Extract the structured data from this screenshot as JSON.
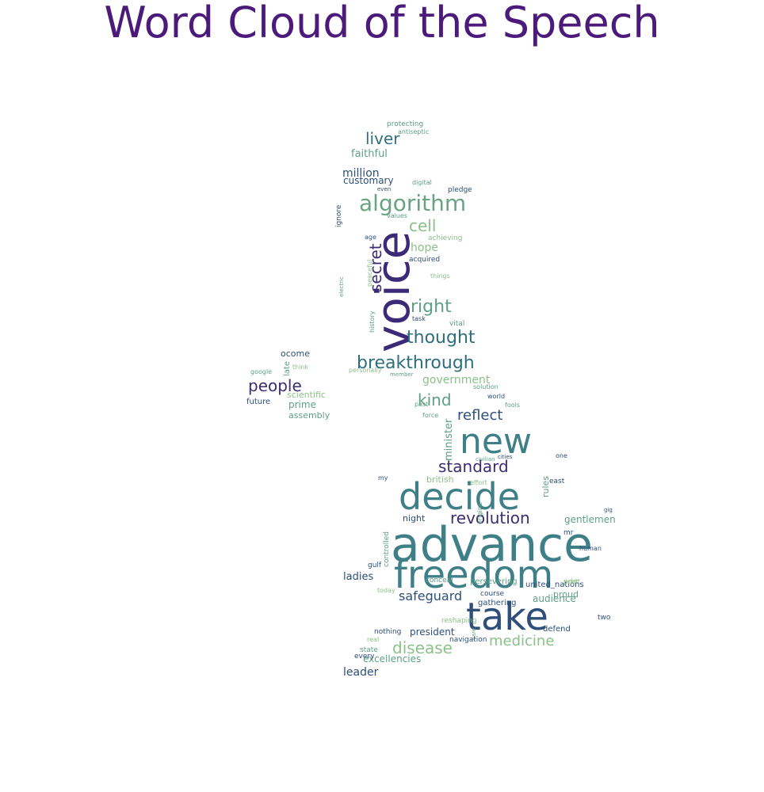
{
  "title": "Word Cloud of the Speech",
  "words": [
    {
      "text": "advance",
      "color": "#3e7f88"
    },
    {
      "text": "freedom",
      "color": "#3e7f88"
    },
    {
      "text": "decide",
      "color": "#3e7f88"
    },
    {
      "text": "take",
      "color": "#2e4f7a"
    },
    {
      "text": "new",
      "color": "#3e7f88"
    },
    {
      "text": "voice",
      "color": "#3a2a78"
    },
    {
      "text": "algorithm",
      "color": "#6aa383"
    },
    {
      "text": "breakthrough",
      "color": "#2e6f7e"
    },
    {
      "text": "thought",
      "color": "#2e6f7e"
    },
    {
      "text": "revolution",
      "color": "#3b2d70"
    },
    {
      "text": "disease",
      "color": "#8cc18a"
    },
    {
      "text": "medicine",
      "color": "#8cc18a"
    },
    {
      "text": "standard",
      "color": "#3b2d70"
    },
    {
      "text": "people",
      "color": "#3b2d70"
    },
    {
      "text": "liver",
      "color": "#2e6f7e"
    },
    {
      "text": "right",
      "color": "#5f9f86"
    },
    {
      "text": "reflect",
      "color": "#2e4f7a"
    },
    {
      "text": "kind",
      "color": "#5f9f86"
    },
    {
      "text": "cell",
      "color": "#8cc18a"
    },
    {
      "text": "secret",
      "color": "#3b2d70"
    },
    {
      "text": "safeguard",
      "color": "#2e4f7a"
    },
    {
      "text": "government",
      "color": "#8cc18a"
    },
    {
      "text": "president",
      "color": "#2e4f7a"
    },
    {
      "text": "million",
      "color": "#2e4f7a"
    },
    {
      "text": "hope",
      "color": "#8cc18a"
    },
    {
      "text": "leader",
      "color": "#2e4f7a"
    },
    {
      "text": "faithful",
      "color": "#5f9f86"
    },
    {
      "text": "customary",
      "color": "#2e4f7a"
    },
    {
      "text": "ladies",
      "color": "#2e4f7a"
    },
    {
      "text": "gentlemen",
      "color": "#5f9f86"
    },
    {
      "text": "audience",
      "color": "#5f9f86"
    },
    {
      "text": "excellencies",
      "color": "#5f9f86"
    },
    {
      "text": "british",
      "color": "#8cc18a"
    },
    {
      "text": "night",
      "color": "#2e4f7a"
    },
    {
      "text": "minister",
      "color": "#5f9f86"
    },
    {
      "text": "prime",
      "color": "#5f9f86"
    },
    {
      "text": "assembly",
      "color": "#5f9f86"
    },
    {
      "text": "scientific",
      "color": "#8cc18a"
    },
    {
      "text": "future",
      "color": "#2e4f7a"
    },
    {
      "text": "ocome",
      "color": "#2e4f7a"
    },
    {
      "text": "late",
      "color": "#5f9f86"
    },
    {
      "text": "persevering",
      "color": "#5f9f86"
    },
    {
      "text": "united_nations",
      "color": "#2e4f7a"
    },
    {
      "text": "proud",
      "color": "#5f9f86"
    },
    {
      "text": "defend",
      "color": "#2e4f7a"
    },
    {
      "text": "nothing",
      "color": "#2e4f7a"
    },
    {
      "text": "gathering",
      "color": "#2e4f7a"
    },
    {
      "text": "reshaping",
      "color": "#8cc18a"
    },
    {
      "text": "course",
      "color": "#2e4f7a"
    },
    {
      "text": "state",
      "color": "#5f9f86"
    },
    {
      "text": "every",
      "color": "#2e4f7a"
    },
    {
      "text": "gulf",
      "color": "#2e4f7a"
    },
    {
      "text": "conceal",
      "color": "#5f9f86"
    },
    {
      "text": "controlled",
      "color": "#5f9f86"
    },
    {
      "text": "print",
      "color": "#8cc18a"
    },
    {
      "text": "mr",
      "color": "#2e4f7a"
    },
    {
      "text": "human",
      "color": "#2e4f7a"
    },
    {
      "text": "rules",
      "color": "#5f9f86"
    },
    {
      "text": "east",
      "color": "#2e4f7a"
    },
    {
      "text": "one",
      "color": "#2e4f7a"
    },
    {
      "text": "world",
      "color": "#2e4f7a"
    },
    {
      "text": "fools",
      "color": "#5f9f86"
    },
    {
      "text": "solution",
      "color": "#5f9f86"
    },
    {
      "text": "force",
      "color": "#5f9f86"
    },
    {
      "text": "past",
      "color": "#5f9f86"
    },
    {
      "text": "vital",
      "color": "#5f9f86"
    },
    {
      "text": "task",
      "color": "#2e4f7a"
    },
    {
      "text": "history",
      "color": "#5f9f86"
    },
    {
      "text": "acquired",
      "color": "#2e4f7a"
    },
    {
      "text": "achieving",
      "color": "#8cc18a"
    },
    {
      "text": "values",
      "color": "#5f9f86"
    },
    {
      "text": "pledge",
      "color": "#2e4f7a"
    },
    {
      "text": "digital",
      "color": "#5f9f86"
    },
    {
      "text": "even",
      "color": "#2e4f7a"
    },
    {
      "text": "ignore",
      "color": "#2e4f7a"
    },
    {
      "text": "age",
      "color": "#2e4f7a"
    },
    {
      "text": "peaceful",
      "color": "#8cc18a"
    },
    {
      "text": "things",
      "color": "#8cc18a"
    },
    {
      "text": "protecting",
      "color": "#5f9f86"
    },
    {
      "text": "antiseptic",
      "color": "#5f9f86"
    },
    {
      "text": "two",
      "color": "#2e4f7a"
    },
    {
      "text": "print",
      "color": "#8cc18a"
    },
    {
      "text": "today",
      "color": "#8cc18a"
    },
    {
      "text": "real",
      "color": "#8cc18a"
    },
    {
      "text": "google",
      "color": "#5f9f86"
    },
    {
      "text": "think",
      "color": "#8cc18a"
    },
    {
      "text": "member",
      "color": "#5f9f86"
    },
    {
      "text": "personally",
      "color": "#8cc18a"
    },
    {
      "text": "electric",
      "color": "#5f9f86"
    },
    {
      "text": "care",
      "color": "#5f9f86"
    },
    {
      "text": "gig",
      "color": "#2e4f7a"
    },
    {
      "text": "origine",
      "color": "#5f9f86"
    },
    {
      "text": "effort",
      "color": "#8cc18a"
    },
    {
      "text": "my",
      "color": "#2e4f7a"
    },
    {
      "text": "cities",
      "color": "#2e4f7a"
    },
    {
      "text": "civilian",
      "color": "#5f9f86"
    },
    {
      "text": "navigation",
      "color": "#2e4f7a"
    }
  ]
}
